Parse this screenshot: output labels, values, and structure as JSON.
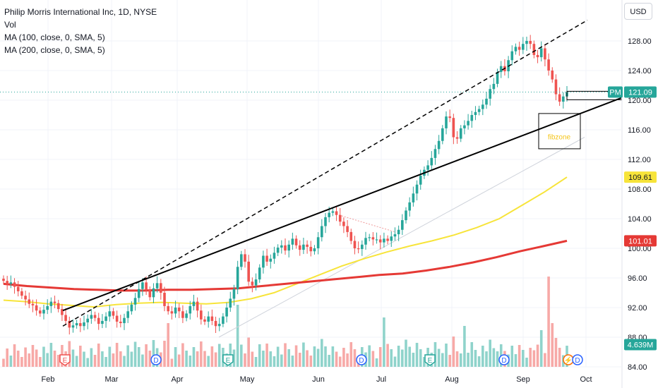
{
  "legend": {
    "title": "Philip Morris International Inc, 1D, NYSE",
    "vol": "Vol",
    "ma100": "MA (100, close, 0, SMA, 5)",
    "ma200": "MA (200, close, 0, SMA, 5)"
  },
  "currency": "USD",
  "colors": {
    "up": "#26a69a",
    "down": "#ef5350",
    "ma100": "#f7e43a",
    "ma200": "#e53935",
    "vol_up": "#8fd3cb",
    "vol_down": "#f7a9a7",
    "trend": "#000000"
  },
  "chart_data": {
    "type": "candlestick",
    "ylim": [
      84,
      132
    ],
    "y_ticks": [
      "84.00",
      "88.00",
      "92.00",
      "96.00",
      "100.00",
      "104.00",
      "108.00",
      "112.00",
      "116.00",
      "120.00",
      "124.00",
      "128.00"
    ],
    "x_labels": [
      "Feb",
      "Mar",
      "Apr",
      "May",
      "Jun",
      "Jul",
      "Aug",
      "Sep",
      "Oct"
    ],
    "symbol_badge": {
      "label": "PM",
      "value": "121.09"
    },
    "ma100_badge": "109.61",
    "ma200_badge": "101.01",
    "volume_badge": "4.639M",
    "box_label": "fibzone",
    "events": [
      {
        "type": "E",
        "month": "Feb"
      },
      {
        "type": "D",
        "month": "Mar"
      },
      {
        "type": "E",
        "month": "Apr"
      },
      {
        "type": "D",
        "month": "Jun"
      },
      {
        "type": "E",
        "month": "Jul"
      },
      {
        "type": "D",
        "month": "Aug"
      }
    ],
    "closes": [
      95.6,
      95.2,
      95.4,
      94.8,
      94.2,
      93.6,
      93.1,
      92.5,
      92.3,
      91.6,
      91.2,
      91.7,
      92.2,
      92.8,
      92.6,
      91.8,
      91.0,
      90.2,
      89.3,
      89.6,
      89.9,
      89.5,
      90.0,
      90.5,
      91.0,
      90.6,
      89.8,
      90.2,
      90.8,
      91.5,
      90.9,
      90.1,
      89.9,
      90.6,
      91.5,
      92.4,
      93.3,
      94.5,
      95.4,
      94.4,
      93.4,
      94.6,
      95.3,
      94.0,
      92.2,
      91.5,
      91.2,
      92.0,
      91.5,
      90.6,
      91.2,
      92.2,
      92.8,
      91.6,
      90.4,
      90.1,
      90.8,
      90.2,
      89.5,
      89.8,
      90.8,
      92.0,
      93.2,
      94.5,
      97.5,
      99.2,
      98.2,
      95.5,
      95.0,
      95.8,
      97.4,
      99.0,
      98.2,
      98.6,
      99.4,
      100.1,
      100.4,
      99.7,
      100.5,
      101.3,
      100.4,
      99.8,
      100.5,
      100.2,
      99.6,
      100.0,
      101.5,
      103.0,
      104.2,
      104.8,
      105.0,
      104.5,
      103.6,
      103.0,
      102.2,
      101.0,
      100.0,
      99.9,
      100.5,
      101.4,
      101.5,
      101.2,
      101.2,
      100.8,
      101.3,
      101.0,
      101.6,
      101.9,
      102.5,
      103.8,
      105.1,
      106.2,
      107.4,
      108.6,
      109.8,
      110.6,
      111.2,
      112.2,
      113.4,
      114.5,
      116.2,
      117.8,
      117.6,
      115.0,
      114.8,
      116.2,
      116.6,
      117.2,
      118.0,
      118.4,
      118.8,
      119.4,
      120.2,
      121.5,
      122.2,
      123.8,
      124.6,
      123.9,
      125.4,
      126.6,
      127.2,
      126.8,
      127.6,
      128.0,
      127.6,
      126.1,
      125.8,
      127.0,
      125.5,
      124.0,
      122.8,
      120.8,
      119.8,
      120.5,
      121.09
    ],
    "ma100": [
      93.0,
      92.8,
      92.5,
      92.3,
      92.1,
      92.4,
      92.6,
      92.7,
      92.6,
      92.5,
      92.7,
      93.2,
      94.0,
      95.2,
      96.4,
      97.6,
      98.6,
      99.5,
      100.3,
      101.0,
      101.8,
      102.8,
      104.0,
      105.8,
      107.6,
      109.61
    ],
    "ma200": [
      95.2,
      94.9,
      94.7,
      94.5,
      94.4,
      94.3,
      94.3,
      94.4,
      94.4,
      94.5,
      94.6,
      94.9,
      95.2,
      95.5,
      95.8,
      96.1,
      96.4,
      96.6,
      97.0,
      97.5,
      98.1,
      98.8,
      99.6,
      100.3,
      101.01
    ]
  }
}
